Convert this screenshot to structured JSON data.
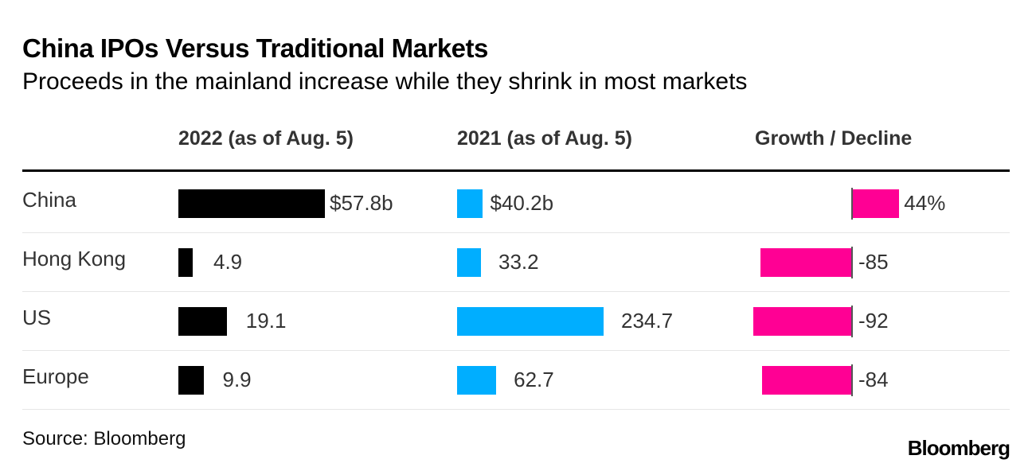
{
  "chart_data": {
    "type": "table",
    "title": "China IPOs Versus Traditional Markets",
    "subtitle": "Proceeds in the mainland increase while they shrink in most markets",
    "columns": [
      "2022 (as of Aug. 5)",
      "2021 (as of Aug. 5)",
      "Growth / Decline"
    ],
    "rows": [
      {
        "label": "China",
        "v2022": 57.8,
        "v2022_label": "$57.8b",
        "v2021": 40.2,
        "v2021_label": "$40.2b",
        "growth": 44,
        "growth_label": "44%"
      },
      {
        "label": "Hong Kong",
        "v2022": 4.9,
        "v2022_label": "4.9",
        "v2021": 33.2,
        "v2021_label": "33.2",
        "growth": -85,
        "growth_label": "-85"
      },
      {
        "label": "US",
        "v2022": 19.1,
        "v2022_label": "19.1",
        "v2021": 234.7,
        "v2021_label": "234.7",
        "growth": -92,
        "growth_label": "-92"
      },
      {
        "label": "Europe",
        "v2022": 9.9,
        "v2022_label": "9.9",
        "v2021": 62.7,
        "v2021_label": "62.7",
        "growth": -84,
        "growth_label": "-84"
      }
    ],
    "colors": {
      "bar2022": "#000000",
      "bar2021": "#00aeff",
      "growth": "#ff0094"
    }
  },
  "source": "Source: Bloomberg",
  "logo": "Bloomberg"
}
